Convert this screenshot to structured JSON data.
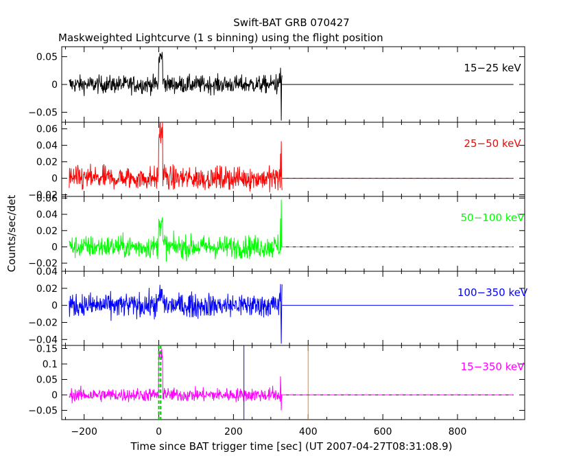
{
  "chart_data": {
    "type": "line",
    "title": "Swift-BAT GRB 070427",
    "subtitle": "Maskweighted Lightcurve (1 s binning) using the flight position",
    "xlabel": "Time since BAT trigger time [sec] (UT 2007-04-27T08:31:08.9)",
    "ylabel": "Counts/sec/det",
    "xlim": [
      -260,
      980
    ],
    "xticks": [
      -200,
      0,
      200,
      400,
      600,
      800
    ],
    "data_end": 330,
    "panels": [
      {
        "band": "15−25 keV",
        "color": "#000000",
        "ylim": [
          -0.068,
          0.068
        ],
        "yticks": [
          -0.05,
          0,
          0.05
        ],
        "ytick_labels": [
          "−0.05",
          "0",
          "0.05"
        ],
        "noise": 0.008,
        "baseline": "solid",
        "peak": 0.058,
        "tail": [
          [
            300,
            0.02
          ],
          [
            320,
            0.03
          ],
          [
            328,
            -0.065
          ]
        ]
      },
      {
        "band": "25−50 keV",
        "color": "#ff0000",
        "ylim": [
          -0.022,
          0.068
        ],
        "yticks": [
          -0.02,
          0,
          0.02,
          0.04,
          0.06
        ],
        "ytick_labels": [
          "−0.02",
          "0",
          "0.02",
          "0.04",
          "0.06"
        ],
        "noise": 0.007,
        "baseline": "dashed",
        "peak": 0.066,
        "tail": [
          [
            300,
            0.02
          ],
          [
            322,
            0.03
          ],
          [
            328,
            0.045
          ]
        ]
      },
      {
        "band": "50−100 keV",
        "color": "#00ff00",
        "ylim": [
          -0.03,
          0.062
        ],
        "yticks": [
          -0.02,
          0,
          0.02,
          0.04,
          0.06
        ],
        "ytick_labels": [
          "−0.02",
          "0",
          "0.02",
          "0.04",
          "0.06"
        ],
        "noise": 0.007,
        "baseline": "dashed",
        "peak": 0.035,
        "tail": [
          [
            300,
            0.02
          ],
          [
            322,
            0.035
          ],
          [
            330,
            0.058
          ]
        ]
      },
      {
        "band": "100−350 keV",
        "color": "#0000ff",
        "ylim": [
          -0.047,
          0.04
        ],
        "yticks": [
          -0.04,
          -0.02,
          0,
          0.02,
          0.04
        ],
        "ytick_labels": [
          "−0.04",
          "−0.02",
          "0",
          "0.02",
          "0.04"
        ],
        "noise": 0.007,
        "baseline": "solid",
        "peak": 0.012,
        "tail": [
          [
            300,
            0.015
          ],
          [
            322,
            0.025
          ],
          [
            328,
            -0.045
          ]
        ]
      },
      {
        "band": "15−350 keV",
        "color": "#ff00ff",
        "ylim": [
          -0.08,
          0.16
        ],
        "yticks": [
          -0.05,
          0,
          0.05,
          0.1,
          0.15
        ],
        "ytick_labels": [
          "−0.05",
          "0",
          "0.05",
          "0.1",
          "0.15"
        ],
        "noise": 0.011,
        "baseline": "dashed",
        "peak": 0.145,
        "tail": [
          [
            300,
            0.04
          ],
          [
            322,
            0.06
          ],
          [
            328,
            -0.05
          ]
        ],
        "markers": [
          {
            "x": 0,
            "color": "#00cc00",
            "style": "dashed"
          },
          {
            "x": 5,
            "color": "#00cc00",
            "style": "dashed"
          },
          {
            "x": 228,
            "color": "#0000ff",
            "style": "solid"
          },
          {
            "x": 400,
            "color": "#ff8000",
            "style": "solid"
          }
        ]
      }
    ]
  }
}
